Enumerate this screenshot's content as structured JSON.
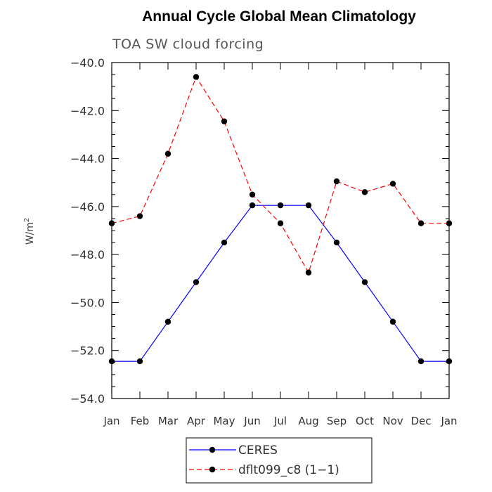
{
  "chart_data": {
    "type": "line",
    "title": "Annual Cycle Global Mean Climatology",
    "subtitle": "TOA SW cloud forcing",
    "ylabel": "W/m",
    "ylabel_superscript": "2",
    "xlabel": "",
    "categories": [
      "Jan",
      "Feb",
      "Mar",
      "Apr",
      "May",
      "Jun",
      "Jul",
      "Aug",
      "Sep",
      "Oct",
      "Nov",
      "Dec",
      "Jan"
    ],
    "ylim": [
      -54.0,
      -40.0
    ],
    "yticks": [
      -54.0,
      -52.0,
      -50.0,
      -48.0,
      -46.0,
      -44.0,
      -42.0,
      -40.0
    ],
    "ytick_labels": [
      "−54.0",
      "−52.0",
      "−50.0",
      "−48.0",
      "−46.0",
      "−44.0",
      "−42.0",
      "−40.0"
    ],
    "series": [
      {
        "name": "CERES",
        "color": "#0000ff",
        "dashed": false,
        "values": [
          -52.45,
          -52.45,
          -50.8,
          -49.15,
          -47.5,
          -45.95,
          -45.95,
          -45.95,
          -47.5,
          -49.15,
          -50.8,
          -52.45,
          -52.45
        ]
      },
      {
        "name": "dflt099_c8 (1−1)",
        "color": "#ff0000",
        "dashed": true,
        "values": [
          -46.7,
          -46.4,
          -43.8,
          -40.6,
          -42.45,
          -45.5,
          -46.7,
          -48.75,
          -44.95,
          -45.4,
          -45.05,
          -46.7,
          -46.7
        ]
      }
    ],
    "marker_color": "#000000",
    "grid": false,
    "legend_position": "bottom-center"
  }
}
